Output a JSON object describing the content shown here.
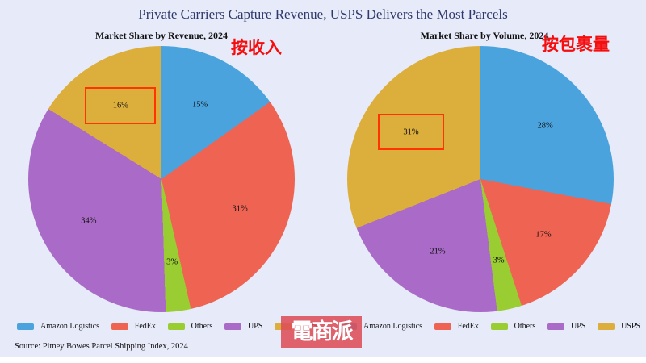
{
  "title": "Private Carriers Capture Revenue, USPS Delivers the Most Parcels",
  "source": "Source: Pitney Bowes Parcel Shipping Index, 2024",
  "watermark": "電商派",
  "colors": {
    "background": "#E7EAF9",
    "title_text": "#2E3A6B",
    "annotation_text": "#F60D0D",
    "highlight_border": "#FF3400",
    "watermark_bg": "#DD4D58",
    "watermark_text": "#FFFFFF"
  },
  "chart_data": [
    {
      "type": "pie",
      "title": "Market Share by Revenue, 2024",
      "annotation": "按收入",
      "labels": [
        "Amazon Logistics",
        "FedEx",
        "Others",
        "UPS",
        "USPS"
      ],
      "values": [
        15,
        31,
        3,
        34,
        16
      ],
      "value_labels": [
        "15%",
        "31%",
        "3%",
        "34%",
        "16%"
      ],
      "colors": [
        "#4BA3DE",
        "#EE6352",
        "#9ACD32",
        "#AA6BC8",
        "#DCAE3C"
      ],
      "start_angle": "12 o'clock",
      "direction": "clockwise",
      "legend_position": "bottom",
      "highlighted_slice": "USPS",
      "highlight_index": 4,
      "highlight_box": {
        "w": 88,
        "h": 46
      }
    },
    {
      "type": "pie",
      "title": "Market Share by Volume, 2024",
      "annotation": "按包裹量",
      "labels": [
        "Amazon Logistics",
        "FedEx",
        "Others",
        "UPS",
        "USPS"
      ],
      "values": [
        28,
        17,
        3,
        21,
        31
      ],
      "value_labels": [
        "28%",
        "17%",
        "3%",
        "21%",
        "31%"
      ],
      "colors": [
        "#4BA3DE",
        "#EE6352",
        "#9ACD32",
        "#AA6BC8",
        "#DCAE3C"
      ],
      "start_angle": "12 o'clock",
      "direction": "clockwise",
      "legend_position": "bottom",
      "highlighted_slice": "USPS",
      "highlight_index": 4,
      "highlight_box": {
        "w": 82,
        "h": 45
      }
    }
  ]
}
